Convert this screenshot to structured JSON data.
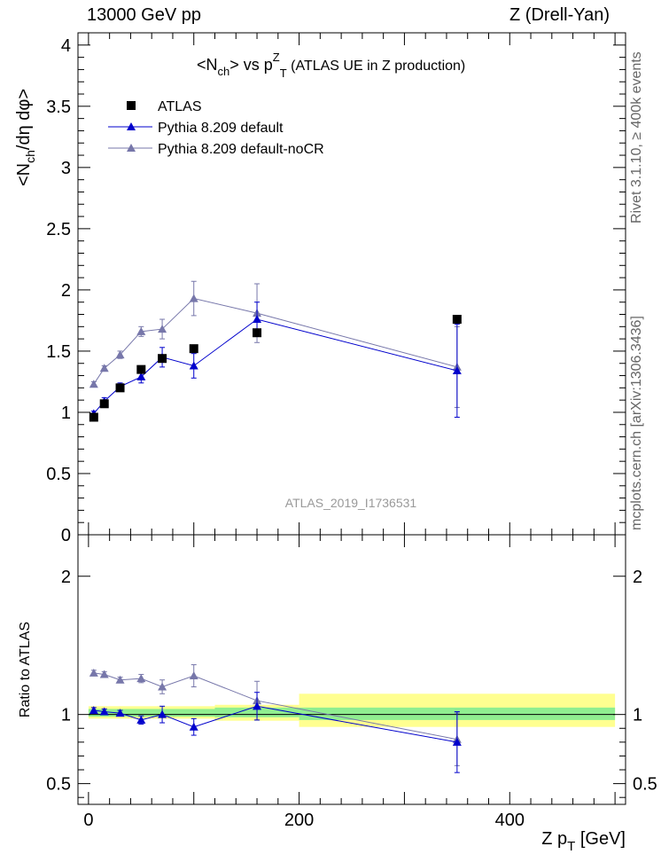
{
  "header": {
    "left": "13000 GeV pp",
    "right": "Z (Drell-Yan)"
  },
  "side_labels": {
    "rivet": "Rivet 3.1.10, ≥ 400k events",
    "mcplots": "mcplots.cern.ch [arXiv:1306.3436]"
  },
  "watermark": "ATLAS_2019_I1736531",
  "colors": {
    "atlas": "#000000",
    "default": "#0000cc",
    "noCR": "#7777aa",
    "band_inner": "#90ee90",
    "band_outer": "#ffff90"
  },
  "chart_data": [
    {
      "type": "line",
      "title_main": "<N",
      "title_sub": "ch",
      "title_mid": "> vs p",
      "title_sup": "Z",
      "title_sub2": "T",
      "title_tail": " (ATLAS UE in Z production)",
      "ylabel_parts": [
        "<N",
        "ch",
        "/dη dφ>"
      ],
      "xlim": [
        -10,
        510
      ],
      "ylim": [
        0,
        4.1
      ],
      "yticks": [
        0,
        0.5,
        1,
        1.5,
        2,
        2.5,
        3,
        3.5,
        4
      ],
      "ytick_labels": [
        "0",
        "0.5",
        "1",
        "1.5",
        "2",
        "2.5",
        "3",
        "3.5",
        "4"
      ],
      "legend_position": "top-left",
      "series": [
        {
          "name": "ATLAS",
          "marker": "square",
          "x": [
            5,
            15,
            30,
            50,
            70,
            100,
            160,
            350
          ],
          "y": [
            0.96,
            1.07,
            1.2,
            1.35,
            1.44,
            1.52,
            1.65,
            1.76
          ]
        },
        {
          "name": "Pythia 8.209 default",
          "marker": "triangle",
          "x": [
            5,
            15,
            30,
            50,
            70,
            100,
            160,
            350
          ],
          "y": [
            0.99,
            1.09,
            1.21,
            1.29,
            1.45,
            1.38,
            1.76,
            1.34
          ],
          "err": [
            0.02,
            0.03,
            0.03,
            0.05,
            0.08,
            0.1,
            0.14,
            0.38
          ]
        },
        {
          "name": "Pythia 8.209 default-noCR",
          "marker": "triangle",
          "x": [
            5,
            15,
            30,
            50,
            70,
            100,
            160,
            350
          ],
          "y": [
            1.23,
            1.36,
            1.47,
            1.66,
            1.68,
            1.93,
            1.81,
            1.37
          ],
          "err": [
            0.02,
            0.02,
            0.03,
            0.04,
            0.08,
            0.14,
            0.24,
            0.33
          ]
        }
      ]
    },
    {
      "type": "line",
      "ylabel": "Ratio to ATLAS",
      "xlabel_main": "Z p",
      "xlabel_sub": "T",
      "xlabel_tail": " [GeV]",
      "xlim": [
        -10,
        510
      ],
      "ylim": [
        0.35,
        2.3
      ],
      "xticks": [
        0,
        200,
        400
      ],
      "xtick_labels": [
        "0",
        "200",
        "400"
      ],
      "yticks": [
        0.5,
        1,
        2
      ],
      "ytick_labels": [
        "0.5",
        "1",
        "2"
      ],
      "bands": [
        {
          "x0": 0,
          "x1": 120,
          "inner": [
            0.985,
            1.04
          ],
          "outer": [
            0.97,
            1.06
          ]
        },
        {
          "x0": 120,
          "x1": 200,
          "inner": [
            0.98,
            1.05
          ],
          "outer": [
            0.955,
            1.07
          ]
        },
        {
          "x0": 200,
          "x1": 500,
          "inner": [
            0.96,
            1.05
          ],
          "outer": [
            0.91,
            1.15
          ]
        }
      ],
      "series": [
        {
          "name": "Pythia 8.209 default",
          "x": [
            5,
            15,
            30,
            50,
            70,
            100,
            160,
            350
          ],
          "y": [
            1.03,
            1.02,
            1.01,
            0.96,
            1.0,
            0.91,
            1.06,
            0.8
          ],
          "err": [
            0.02,
            0.02,
            0.02,
            0.03,
            0.06,
            0.06,
            0.1,
            0.22
          ]
        },
        {
          "name": "Pythia 8.209 default-noCR",
          "x": [
            5,
            15,
            30,
            50,
            70,
            100,
            160,
            350
          ],
          "y": [
            1.3,
            1.29,
            1.25,
            1.26,
            1.2,
            1.28,
            1.1,
            0.82
          ],
          "err": [
            0.02,
            0.02,
            0.02,
            0.03,
            0.05,
            0.08,
            0.14,
            0.19
          ]
        }
      ]
    }
  ]
}
